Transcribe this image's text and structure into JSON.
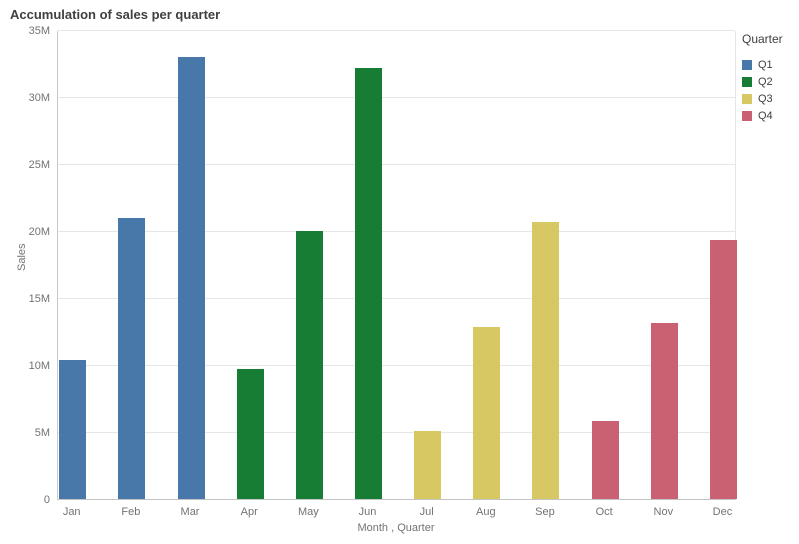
{
  "header": {
    "title": "Accumulation of sales per quarter"
  },
  "colors": {
    "q1_blue": "#4877aa",
    "q2_green": "#177d35",
    "q3_sand": "#d8c863",
    "q4_rose": "#ca6172",
    "gridline": "#e6e6e6",
    "axis_text": "#737373",
    "title_text": "#404040"
  },
  "chart_data": {
    "type": "bar",
    "title": "Accumulation of sales per quarter",
    "xlabel": "Month , Quarter",
    "ylabel": "Sales",
    "ylim_millions": [
      0,
      35
    ],
    "ytick_labels": [
      "0",
      "5M",
      "10M",
      "15M",
      "20M",
      "25M",
      "30M",
      "35M"
    ],
    "grid": true,
    "legend_position": "right",
    "categories": [
      "Jan",
      "Feb",
      "Mar",
      "Apr",
      "May",
      "Jun",
      "Jul",
      "Aug",
      "Sep",
      "Oct",
      "Nov",
      "Dec"
    ],
    "points": [
      {
        "month": "Jan",
        "quarter": "Q1",
        "value_millions": 10.4
      },
      {
        "month": "Feb",
        "quarter": "Q1",
        "value_millions": 21.0
      },
      {
        "month": "Mar",
        "quarter": "Q1",
        "value_millions": 33.0
      },
      {
        "month": "Apr",
        "quarter": "Q2",
        "value_millions": 9.7
      },
      {
        "month": "May",
        "quarter": "Q2",
        "value_millions": 20.0
      },
      {
        "month": "Jun",
        "quarter": "Q2",
        "value_millions": 32.2
      },
      {
        "month": "Jul",
        "quarter": "Q3",
        "value_millions": 5.1
      },
      {
        "month": "Aug",
        "quarter": "Q3",
        "value_millions": 12.8
      },
      {
        "month": "Sep",
        "quarter": "Q3",
        "value_millions": 20.7
      },
      {
        "month": "Oct",
        "quarter": "Q4",
        "value_millions": 5.8
      },
      {
        "month": "Nov",
        "quarter": "Q4",
        "value_millions": 13.1
      },
      {
        "month": "Dec",
        "quarter": "Q4",
        "value_millions": 19.3
      }
    ]
  },
  "legend": {
    "title": "Quarter",
    "items": [
      {
        "label": "Q1",
        "color": "#4877aa"
      },
      {
        "label": "Q2",
        "color": "#177d35"
      },
      {
        "label": "Q3",
        "color": "#d8c863"
      },
      {
        "label": "Q4",
        "color": "#ca6172"
      }
    ]
  }
}
